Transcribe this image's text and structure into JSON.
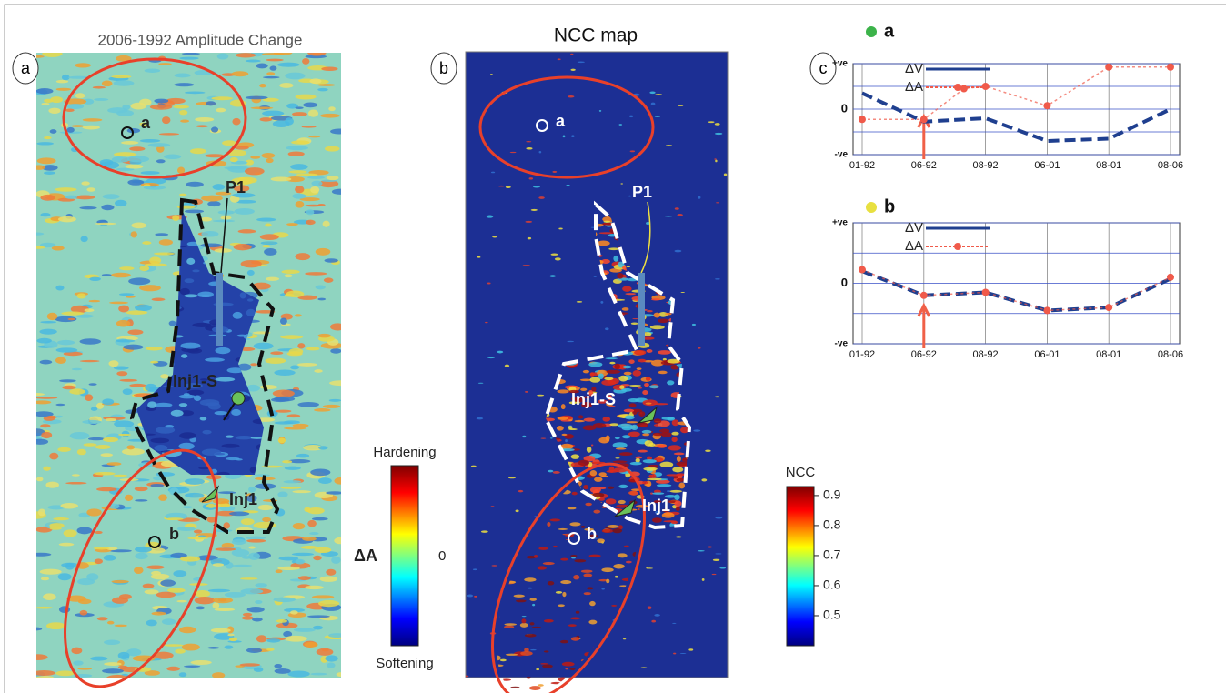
{
  "panels": {
    "a": {
      "label": "a",
      "title": "2006-1992 Amplitude Change",
      "texts": {
        "point_a": "a",
        "point_b": "b",
        "well": "P1",
        "injector_s": "Inj1-S",
        "injector": "Inj1"
      },
      "colorbar": {
        "top_label": "Hardening",
        "bottom_label": "Softening",
        "axis_label": "ΔA",
        "zero_label": "0"
      }
    },
    "b": {
      "label": "b",
      "title": "NCC map",
      "texts": {
        "point_a": "a",
        "point_b": "b",
        "well": "P1",
        "injector_s": "Inj1-S",
        "injector": "Inj1"
      },
      "colorbar": {
        "title": "NCC",
        "lim": [
          0.4,
          0.93
        ],
        "ticks": [
          0.5,
          0.6,
          0.7,
          0.8,
          0.9
        ]
      }
    },
    "c": {
      "label": "c",
      "charts": [
        {
          "type": "line",
          "title": "a",
          "marker_color": "#3cb34a",
          "categories": [
            "01-92",
            "06-92",
            "08-92",
            "06-01",
            "08-01",
            "08-06"
          ],
          "ylim": [
            -2,
            2
          ],
          "yticks": [
            {
              "value": 2,
              "label": "+ve"
            },
            0,
            {
              "value": -2,
              "label": "-ve"
            }
          ],
          "grid_y": [
            -1,
            1
          ],
          "series": [
            {
              "name": "ΔV",
              "color": "#1f3f8f",
              "values": [
                0.7,
                -0.55,
                -0.4,
                -1.4,
                -1.3,
                0
              ]
            },
            {
              "name": "ΔA",
              "color": "#f05a4a",
              "x": [
                0,
                1,
                1.65,
                2,
                3,
                4,
                5
              ],
              "values": [
                -0.45,
                -0.45,
                0.9,
                1,
                0.15,
                1.85,
                1.85
              ]
            }
          ]
        },
        {
          "type": "line",
          "title": "b",
          "marker_color": "#e8e040",
          "categories": [
            "01-92",
            "06-92",
            "08-92",
            "06-01",
            "08-01",
            "08-06"
          ],
          "ylim": [
            -2,
            2
          ],
          "yticks": [
            {
              "value": 2,
              "label": "+ve"
            },
            0,
            {
              "value": -2,
              "label": "-ve"
            }
          ],
          "grid_y": [
            -1,
            1
          ],
          "series": [
            {
              "name": "ΔV",
              "color": "#1f3f8f",
              "values": [
                0.4,
                -0.4,
                -0.3,
                -0.9,
                -0.8,
                0.15
              ]
            },
            {
              "name": "ΔA",
              "color": "#f05a4a",
              "values": [
                0.45,
                -0.4,
                -0.3,
                -0.9,
                -0.8,
                0.2
              ]
            }
          ]
        }
      ]
    }
  }
}
